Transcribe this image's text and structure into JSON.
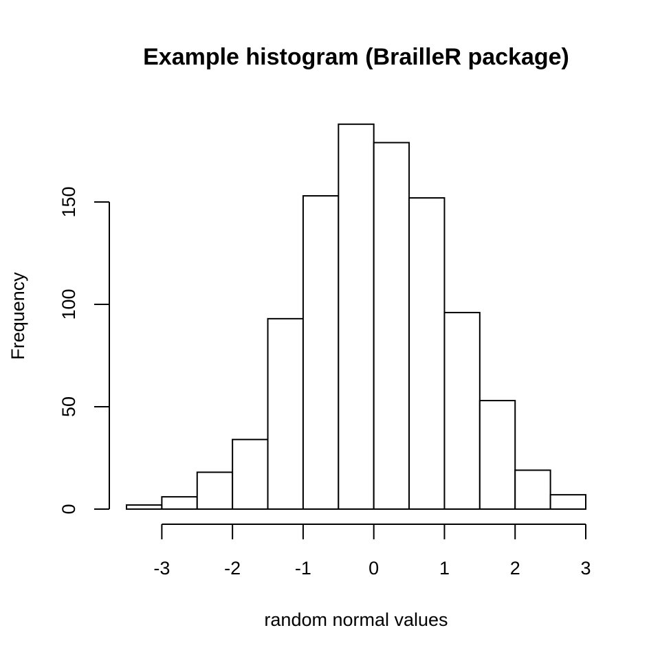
{
  "chart_data": {
    "type": "bar",
    "title": "Example histogram (BrailleR package)",
    "xlabel": "random normal values",
    "ylabel": "Frequency",
    "xlim": [
      -3.5,
      3.0
    ],
    "ylim": [
      0,
      190
    ],
    "bin_edges": [
      -3.5,
      -3.0,
      -2.5,
      -2.0,
      -1.5,
      -1.0,
      -0.5,
      0.0,
      0.5,
      1.0,
      1.5,
      2.0,
      2.5,
      3.0
    ],
    "values": [
      2,
      6,
      18,
      34,
      93,
      153,
      188,
      179,
      152,
      96,
      53,
      19,
      7
    ],
    "x_ticks": [
      -3,
      -2,
      -1,
      0,
      1,
      2,
      3
    ],
    "x_tick_labels": [
      "-3",
      "-2",
      "-1",
      "0",
      "1",
      "2",
      "3"
    ],
    "y_ticks": [
      0,
      50,
      100,
      150
    ],
    "y_tick_labels": [
      "0",
      "50",
      "100",
      "150"
    ],
    "grid": false,
    "legend": "none",
    "bar_fill": "#ffffff",
    "bar_stroke": "#000000"
  }
}
